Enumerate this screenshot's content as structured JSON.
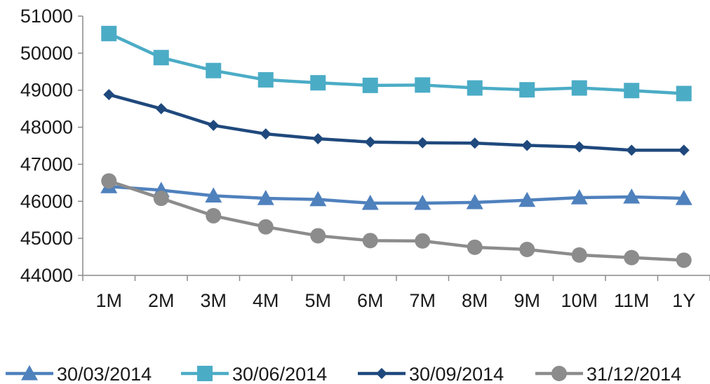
{
  "chart_data": {
    "type": "line",
    "categories": [
      "1M",
      "2M",
      "3M",
      "4M",
      "5M",
      "6M",
      "7M",
      "8M",
      "9M",
      "10M",
      "11M",
      "1Y"
    ],
    "ylim": [
      44000,
      51000
    ],
    "yticks": [
      44000,
      45000,
      46000,
      47000,
      48000,
      49000,
      50000,
      51000
    ],
    "grid": false,
    "legend_position": "bottom",
    "series": [
      {
        "name": "30/03/2014",
        "marker": "triangle",
        "color": "#4f81bd",
        "values": [
          46400,
          46300,
          46150,
          46080,
          46050,
          45950,
          45950,
          45970,
          46030,
          46100,
          46120,
          46080
        ]
      },
      {
        "name": "30/06/2014",
        "marker": "square",
        "color": "#4bacc6",
        "values": [
          50530,
          49880,
          49530,
          49280,
          49200,
          49130,
          49140,
          49060,
          49010,
          49060,
          48990,
          48910
        ]
      },
      {
        "name": "30/09/2014",
        "marker": "diamond",
        "color": "#1f497d",
        "values": [
          48880,
          48500,
          48050,
          47820,
          47690,
          47600,
          47580,
          47570,
          47510,
          47470,
          47380,
          47380
        ]
      },
      {
        "name": "31/12/2014",
        "marker": "circle",
        "color": "#8c8c8c",
        "values": [
          46550,
          46080,
          45610,
          45310,
          45070,
          44940,
          44930,
          44760,
          44700,
          44550,
          44480,
          44410
        ]
      }
    ]
  }
}
